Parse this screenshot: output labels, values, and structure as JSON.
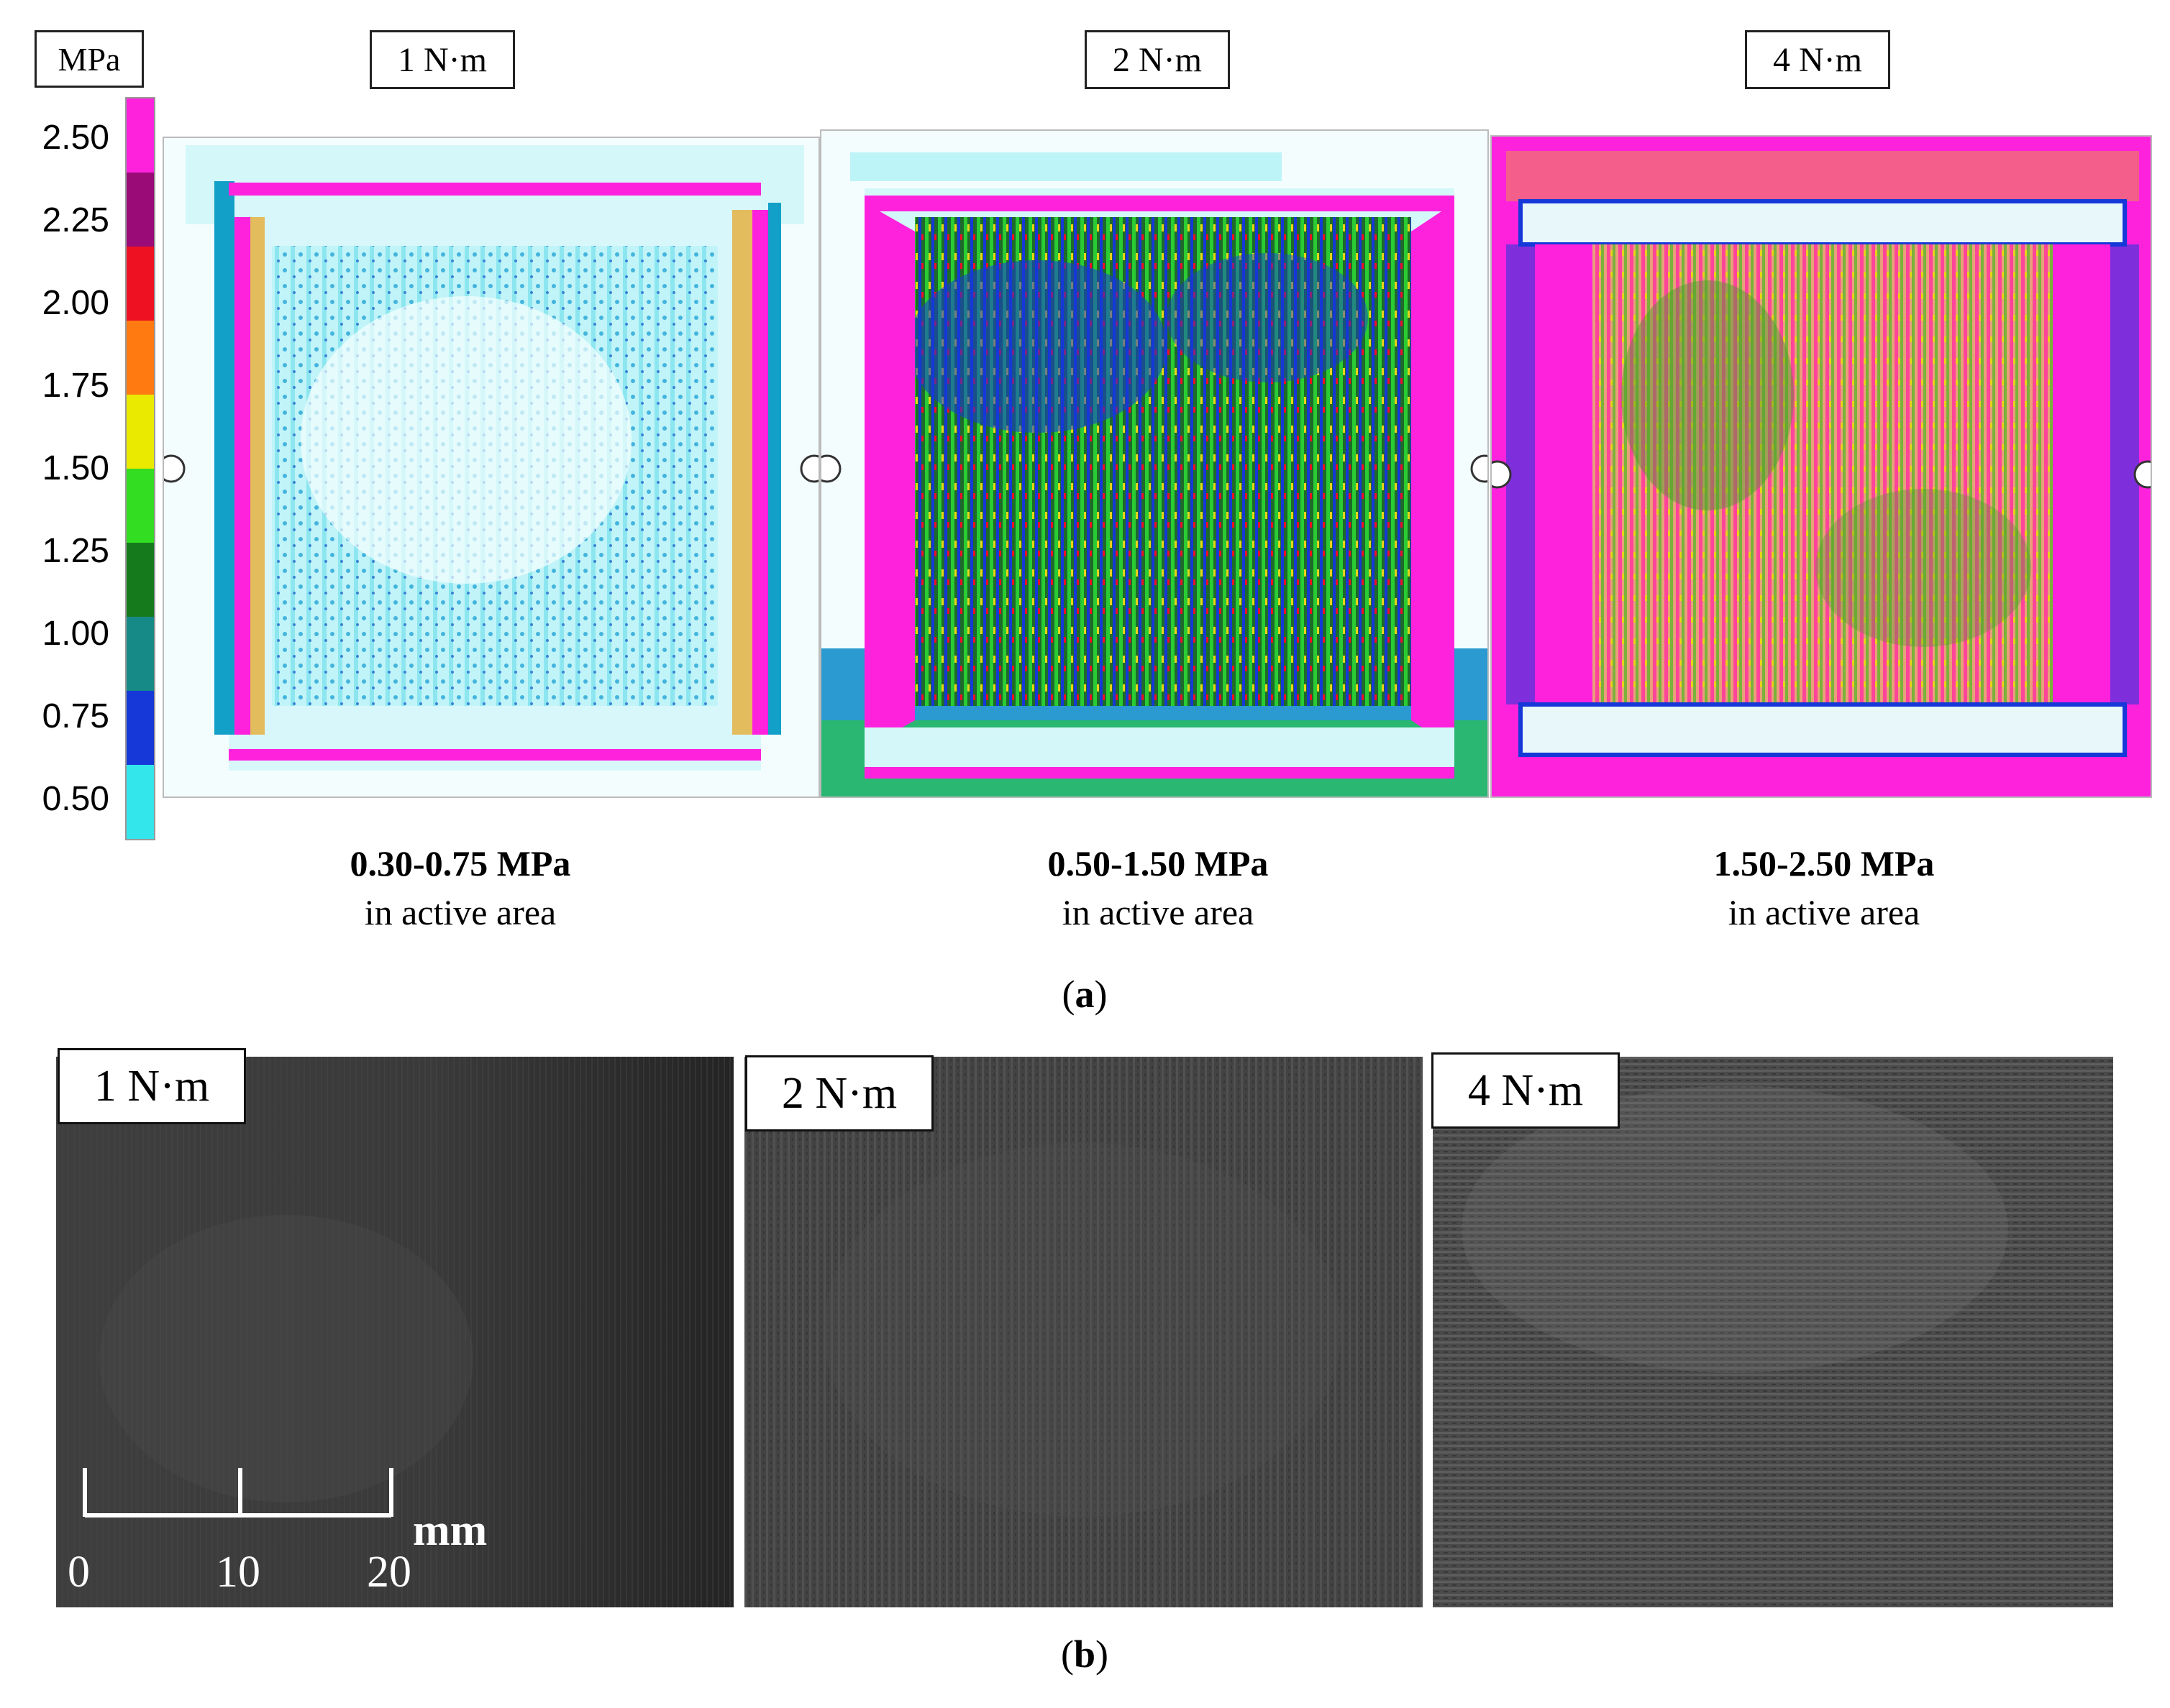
{
  "colorbar": {
    "unit": "MPa",
    "ticks": [
      "2.50",
      "2.25",
      "2.00",
      "1.75",
      "1.50",
      "1.25",
      "1.00",
      "0.75",
      "0.50"
    ],
    "colors": [
      "#ff22dd",
      "#9a0b77",
      "#ee1122",
      "#ff7a10",
      "#eaea00",
      "#33dd22",
      "#157a1c",
      "#158a86",
      "#1638d8",
      "#33e6ec"
    ]
  },
  "panel_a": {
    "caption_open": "(",
    "caption_letter": "a",
    "caption_close": ")",
    "items": [
      {
        "torque": "1 N·m",
        "range": "0.30-0.75 MPa",
        "note": "in active area"
      },
      {
        "torque": "2 N·m",
        "range": "0.50-1.50 MPa",
        "note": "in active area"
      },
      {
        "torque": "4 N·m",
        "range": "1.50-2.50 MPa",
        "note": "in active area"
      }
    ]
  },
  "panel_b": {
    "caption_open": "(",
    "caption_letter": "b",
    "caption_close": ")",
    "items": [
      {
        "torque": "1 N·m"
      },
      {
        "torque": "2 N·m"
      },
      {
        "torque": "4 N·m"
      }
    ],
    "scale": {
      "labels": [
        "0",
        "10",
        "20"
      ],
      "unit": "mm"
    }
  }
}
